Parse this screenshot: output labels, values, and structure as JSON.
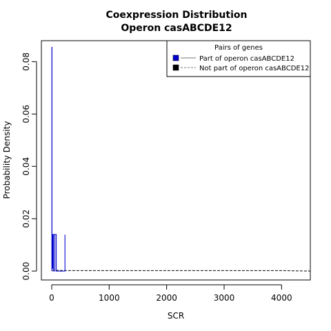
{
  "chart_data": {
    "type": "line",
    "title": "Coexpression Distribution",
    "subtitle": "Operon casABCDE12",
    "xlabel": "SCR",
    "ylabel": "Probability Density",
    "xlim": [
      -180,
      4500
    ],
    "ylim": [
      -0.0034,
      0.088
    ],
    "x_ticks": [
      0,
      1000,
      2000,
      3000,
      4000
    ],
    "x_tick_labels": [
      "0",
      "1000",
      "2000",
      "3000",
      "4000"
    ],
    "y_ticks": [
      0.0,
      0.02,
      0.04,
      0.06,
      0.08
    ],
    "y_tick_labels": [
      "0.00",
      "0.02",
      "0.04",
      "0.06",
      "0.08"
    ],
    "grid": false,
    "legend": {
      "placement": "top-right",
      "title": "Pairs of genes",
      "entries": [
        "Part of operon casABCDE12",
        "Not part of operon casABCDE12"
      ]
    },
    "series": [
      {
        "name": "Part of operon casABCDE12",
        "color": "#0000cc",
        "line_style": "solid",
        "x": [
          0,
          2,
          2,
          5,
          5,
          6,
          6,
          9,
          9,
          10,
          10,
          18,
          18,
          19,
          19,
          30,
          30,
          32,
          32,
          55,
          55,
          56,
          56,
          80,
          80,
          81,
          81,
          230,
          230,
          231,
          231
        ],
        "y": [
          0.0,
          0.0,
          0.0855,
          0.0855,
          0.001,
          0.001,
          0.014,
          0.014,
          0.001,
          0.001,
          0.014,
          0.014,
          0.001,
          0.001,
          0.014,
          0.014,
          0.0,
          0.0,
          0.014,
          0.014,
          0.0,
          0.0,
          0.014,
          0.014,
          0.0,
          0.0,
          0.0,
          0.0,
          0.0138,
          0.0138,
          0.0
        ]
      },
      {
        "name": "Not part of operon casABCDE12",
        "color": "#000000",
        "line_style": "dashed",
        "x": [
          0,
          10,
          50,
          200,
          500,
          1000,
          1500,
          2000,
          2500,
          3000,
          3500,
          4000,
          4200,
          4500
        ],
        "y": [
          0.0002,
          0.0003,
          0.0003,
          0.0002,
          0.0002,
          0.0002,
          0.0002,
          0.0002,
          0.0002,
          0.0002,
          0.0002,
          0.0002,
          0.0001,
          0.0
        ]
      }
    ]
  }
}
